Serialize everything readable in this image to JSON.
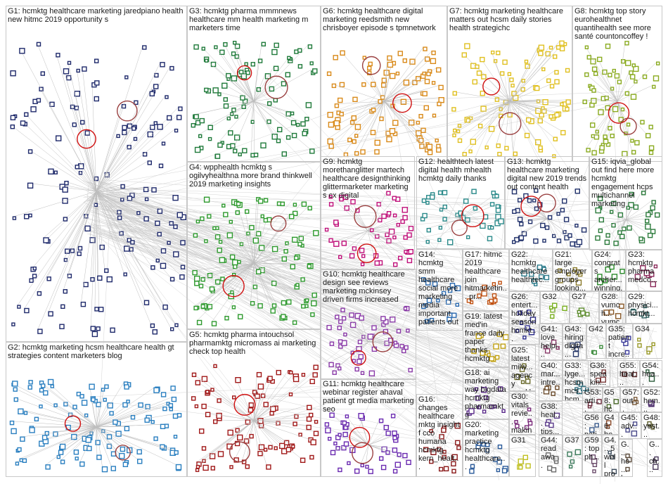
{
  "groups": [
    {
      "id": "G1",
      "label": "G1: hcmktg healthcare marketing jaredpiano health new hitmc 2019 opportunity s",
      "color": "#1f2a6b"
    },
    {
      "id": "G2",
      "label": "G2: hcmktg marketing hcsm healthcare health gt strategies content marketers blog",
      "color": "#2a7fc0"
    },
    {
      "id": "G3",
      "label": "G3: hcmktg pharma mmmnews healthcare mm health marketing m marketers time",
      "color": "#1f7a3a"
    },
    {
      "id": "G4",
      "label": "G4: wpphealth hcmktg s ogilvyhealthna more brand thinkwell 2019 marketing insights",
      "color": "#2e9a2e"
    },
    {
      "id": "G5",
      "label": "G5: hcmktg pharma intouchsol pharmamktg micromass ai marketing check top health",
      "color": "#a01818"
    },
    {
      "id": "G6",
      "label": "G6: hcmktg healthcare digital marketing reedsmith new chrisboyer episode s tpmnetwork",
      "color": "#d98a1a"
    },
    {
      "id": "G7",
      "label": "G7: hcmktg marketing healthcare matters out hcsm daily stories health strategichc",
      "color": "#e0c020"
    },
    {
      "id": "G8",
      "label": "G8: hcmktg top story eurohealthnet quantihealth see more santé countoncoffey !",
      "color": "#8aab20"
    },
    {
      "id": "G9",
      "label": "G9: hcmktg morethanglitter martech healthcare designthinking glittermarketer marketing s cx digital",
      "color": "#c0107a"
    },
    {
      "id": "G10",
      "label": "G10: hcmktg healthcare design see reviews marketing mckinsey driven firms increased",
      "color": "#8a3aa8"
    },
    {
      "id": "G11",
      "label": "G11: hcmktg healthcare webinar register ahaval patient gt media marketing seo",
      "color": "#6a2ab0"
    },
    {
      "id": "G12",
      "label": "G12: healthtech latest digital health mhealth hcmktg daily thanks",
      "color": "#2a8a8a"
    },
    {
      "id": "G13",
      "label": "G13: hcmktg healthcare marketing digital new 2019 trends out content health",
      "color": "#20306a"
    },
    {
      "id": "G14",
      "label": "G14: hcmktg smm healthcare social more marketing media important patients out",
      "color": "#2a6ab0"
    },
    {
      "id": "G15",
      "label": "G15: iqvia_global out find here more hcmktg engagement hcps multichannel marketing",
      "color": "#2a7a3a"
    },
    {
      "id": "G16",
      "label": "G16: changes healthcare mktg insight f cco humana hcmktg kern_healt...",
      "color": "#8a1a1a"
    },
    {
      "id": "G17",
      "label": "G17: hitmc 2019 healthcare join hitmarketin... pr...",
      "color": "#c05010"
    },
    {
      "id": "G18",
      "label": "G18: ai marketing way bigdata hcmktg pharmamktg advertising...",
      "color": "#5a2a8a"
    },
    {
      "id": "G19",
      "label": "G19: latest med'in france daily paper thanks hcmktg",
      "color": "#c0a010"
    },
    {
      "id": "G20",
      "label": "G20: marketing practice hcmktg healthcare...",
      "color": "#2a5a9a"
    },
    {
      "id": "G21",
      "label": "G21: large employer groups looking...",
      "color": "#8a7a2a"
    },
    {
      "id": "G22",
      "label": "G22: hcmktg healthcare healthtec...",
      "color": "#2a7a8a"
    },
    {
      "id": "G23",
      "label": "G23: hcmktg pharma medco...",
      "color": "#8a2a5a"
    },
    {
      "id": "G24",
      "label": "G24: congrats archer... winning...",
      "color": "#2a8a2a"
    },
    {
      "id": "G25",
      "label": "G25: latest milw... agency weekl...",
      "color": "#6a6a2a"
    },
    {
      "id": "G26",
      "label": "G26: entert... holiday season hcmkt...",
      "color": "#2a2a8a"
    },
    {
      "id": "G27",
      "label": "G27",
      "color": "#5a8a2a"
    },
    {
      "id": "G28",
      "label": "G28: vumch... vumc...",
      "color": "#8a5a2a"
    },
    {
      "id": "G29",
      "label": "G29: physici... hcmkt...",
      "color": "#2a5a5a"
    },
    {
      "id": "G30",
      "label": "G30: vitals revie... makin...",
      "color": "#7a2a7a"
    },
    {
      "id": "G31",
      "label": "G31",
      "color": "#c0c020"
    },
    {
      "id": "G32",
      "label": "G32",
      "color": "#7ab020"
    },
    {
      "id": "G33",
      "label": "G33: lyge... hcsm mcs... hcm...",
      "color": "#2a6a7a"
    },
    {
      "id": "G34",
      "label": "G34",
      "color": "#9a9a2a"
    },
    {
      "id": "G35",
      "label": "G35: patient incre...",
      "color": "#3a3a9a"
    },
    {
      "id": "G36",
      "label": "G36: speakin...",
      "color": "#7a3a3a"
    },
    {
      "id": "G37",
      "label": "G37",
      "color": "#3a7a5a"
    },
    {
      "id": "G38",
      "label": "G38: heal... tips...",
      "color": "#5a3a8a"
    },
    {
      "id": "G39",
      "label": "G39: heal...",
      "color": "#2a4a8a"
    },
    {
      "id": "G40",
      "label": "G40: mar... intre...",
      "color": "#6a4a2a"
    },
    {
      "id": "G41",
      "label": "G41: love helpi...",
      "color": "#8a3a6a"
    },
    {
      "id": "G42",
      "label": "G42",
      "color": "#3a8a3a"
    },
    {
      "id": "G43",
      "label": "G43: hiring digita...",
      "color": "#2a3a6a"
    },
    {
      "id": "G44",
      "label": "G44: read awa...",
      "color": "#6a6a6a"
    },
    {
      "id": "G45",
      "label": "G45: adv...",
      "color": "#4a4a8a"
    },
    {
      "id": "G46",
      "label": "G46: he...",
      "color": "#8a4a2a"
    },
    {
      "id": "G47",
      "label": "G4...",
      "color": "#2a6a4a"
    },
    {
      "id": "G48",
      "label": "G48: yest...",
      "color": "#5a5a2a"
    },
    {
      "id": "G49",
      "label": "G...",
      "color": "#3a3a6a"
    },
    {
      "id": "G50",
      "label": "G...",
      "color": "#6a3a6a"
    },
    {
      "id": "G51",
      "label": "G...",
      "color": "#3a6a6a"
    },
    {
      "id": "G52",
      "label": "G52: hcm...",
      "color": "#4a2a6a"
    },
    {
      "id": "G53",
      "label": "G53: arti... tak...",
      "color": "#6a2a3a"
    },
    {
      "id": "G54",
      "label": "G54: hea...",
      "color": "#2a5a3a"
    },
    {
      "id": "G55",
      "label": "G55: heal...",
      "color": "#5a2a2a"
    },
    {
      "id": "G56",
      "label": "G56: pati...",
      "color": "#3a5a8a"
    },
    {
      "id": "G57",
      "label": "G57: out...",
      "color": "#7a5a3a"
    },
    {
      "id": "G58",
      "label": "G58: hcm...",
      "color": "#4a6a2a"
    },
    {
      "id": "G59",
      "label": "G59: top ph...",
      "color": "#6a4a6a"
    },
    {
      "id": "G60",
      "label": "G4... 5 well pro...",
      "color": "#3a4a5a"
    },
    {
      "id": "G61",
      "label": "G... ho... ha...",
      "color": "#5a4a3a"
    },
    {
      "id": "G62",
      "label": "G... ch... o...",
      "color": "#4a3a5a"
    }
  ]
}
